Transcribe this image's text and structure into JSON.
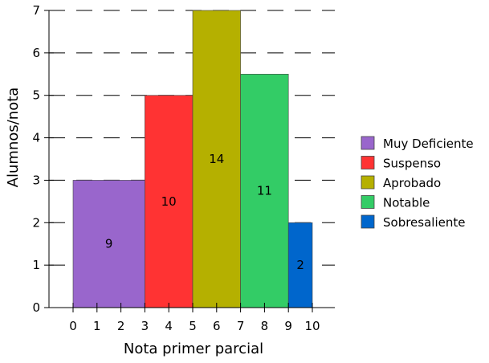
{
  "chart_data": {
    "type": "histogram",
    "xlabel": "Nota primer parcial",
    "ylabel": "Alumnos/nota",
    "xlim": [
      -1,
      11
    ],
    "ylim": [
      0,
      7
    ],
    "x_ticks": [
      "0",
      "1",
      "2",
      "3",
      "4",
      "5",
      "6",
      "7",
      "8",
      "9",
      "10"
    ],
    "y_ticks": [
      "0",
      "1",
      "2",
      "3",
      "4",
      "5",
      "6",
      "7"
    ],
    "grid": "horizontal-dashed",
    "legend_position": "right",
    "bars": [
      {
        "name": "Muy Deficiente",
        "x_start": 0,
        "x_end": 3,
        "height": 3,
        "count": "9",
        "color": "#9966cc"
      },
      {
        "name": "Suspenso",
        "x_start": 3,
        "x_end": 5,
        "height": 5,
        "count": "10",
        "color": "#ff3333"
      },
      {
        "name": "Aprobado",
        "x_start": 5,
        "x_end": 7,
        "height": 7,
        "count": "14",
        "color": "#b5b000"
      },
      {
        "name": "Notable",
        "x_start": 7,
        "x_end": 9,
        "height": 5.5,
        "count": "11",
        "color": "#33cc66"
      },
      {
        "name": "Sobresaliente",
        "x_start": 9,
        "x_end": 10,
        "height": 2,
        "count": "2",
        "color": "#0066cc"
      }
    ]
  }
}
